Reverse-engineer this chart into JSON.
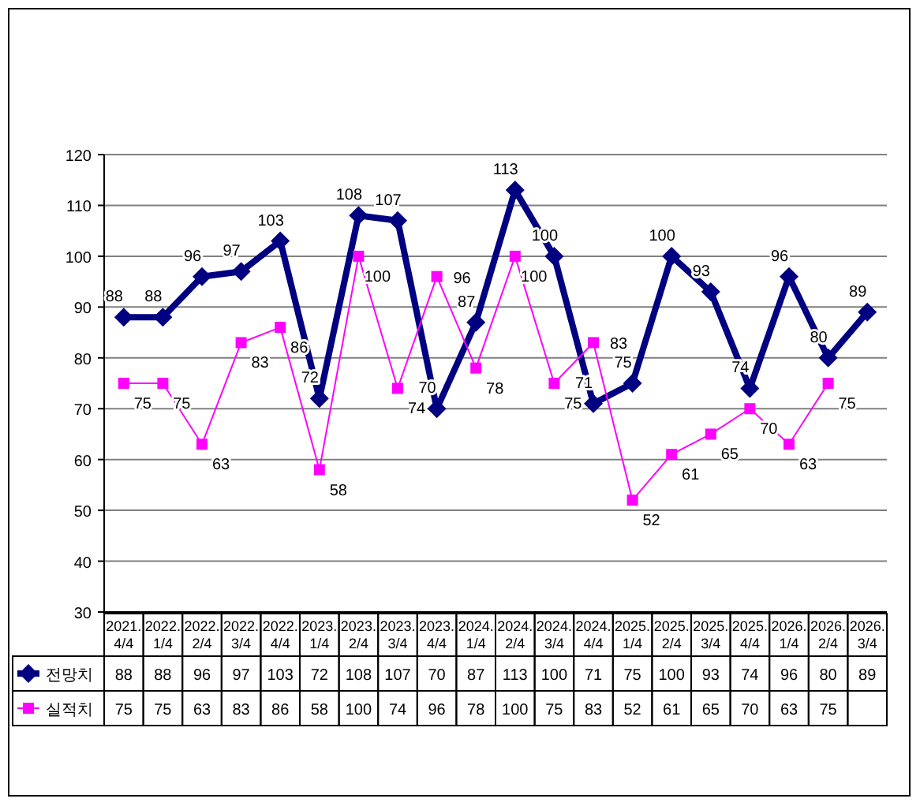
{
  "chart_data": {
    "type": "line",
    "categories": [
      "2021.4/4",
      "2022.1/4",
      "2022.2/4",
      "2022.3/4",
      "2022.4/4",
      "2023.1/4",
      "2023.2/4",
      "2023.3/4",
      "2023.4/4",
      "2024.1/4",
      "2024.2/4",
      "2024.3/4",
      "2024.4/4",
      "2025.1/4",
      "2025.2/4",
      "2025.3/4",
      "2025.4/4",
      "2026.1/4",
      "2026.2/4",
      "2026.3/4"
    ],
    "series": [
      {
        "name": "전망치",
        "color": "#000080",
        "marker": "diamond",
        "values": [
          88,
          88,
          96,
          97,
          103,
          72,
          108,
          107,
          70,
          87,
          113,
          100,
          71,
          75,
          100,
          93,
          74,
          96,
          80,
          89
        ]
      },
      {
        "name": "실적치",
        "color": "#ff00ff",
        "marker": "square",
        "values": [
          75,
          75,
          63,
          83,
          86,
          58,
          100,
          74,
          96,
          78,
          100,
          75,
          83,
          52,
          61,
          65,
          70,
          63,
          75,
          null
        ]
      }
    ],
    "annotations": [
      {
        "text": "88",
        "x": "2021.4/4",
        "y": 88
      },
      {
        "text": "88",
        "x": "2022.1/4",
        "y": 88
      },
      {
        "text": "96",
        "x": "2022.2/4",
        "y": 96
      },
      {
        "text": "97",
        "x": "2022.3/4",
        "y": 97
      },
      {
        "text": "103",
        "x": "2022.4/4",
        "y": 103
      },
      {
        "text": "72",
        "x": "2023.1/4",
        "y": 72
      },
      {
        "text": "108",
        "x": "2023.2/4",
        "y": 108
      },
      {
        "text": "107",
        "x": "2023.3/4",
        "y": 107
      },
      {
        "text": "70",
        "x": "2023.4/4",
        "y": 70
      },
      {
        "text": "87",
        "x": "2024.1/4",
        "y": 87
      },
      {
        "text": "113",
        "x": "2024.2/4",
        "y": 113
      },
      {
        "text": "100",
        "x": "2024.3/4",
        "y": 100
      },
      {
        "text": "71",
        "x": "2024.4/4",
        "y": 71
      },
      {
        "text": "75",
        "x": "2025.1/4",
        "y": 75
      },
      {
        "text": "100",
        "x": "2025.2/4",
        "y": 100
      },
      {
        "text": "93",
        "x": "2025.3/4",
        "y": 93
      },
      {
        "text": "74",
        "x": "2025.4/4",
        "y": 74
      },
      {
        "text": "96",
        "x": "2026.1/4",
        "y": 96
      },
      {
        "text": "80",
        "x": "2026.2/4",
        "y": 80
      },
      {
        "text": "89",
        "x": "2026.3/4",
        "y": 89
      },
      {
        "text": "75",
        "x": "2021.4/4",
        "y": 75
      },
      {
        "text": "75",
        "x": "2022.1/4",
        "y": 75
      },
      {
        "text": "63",
        "x": "2022.2/4",
        "y": 63
      },
      {
        "text": "83",
        "x": "2022.3/4",
        "y": 83
      },
      {
        "text": "86",
        "x": "2022.4/4",
        "y": 86
      },
      {
        "text": "58",
        "x": "2023.1/4",
        "y": 58
      },
      {
        "text": "100",
        "x": "2023.2/4",
        "y": 100
      },
      {
        "text": "74",
        "x": "2023.3/4",
        "y": 74
      },
      {
        "text": "96",
        "x": "2023.4/4",
        "y": 96
      },
      {
        "text": "78",
        "x": "2024.1/4",
        "y": 78
      },
      {
        "text": "100",
        "x": "2024.2/4",
        "y": 100
      },
      {
        "text": "75",
        "x": "2024.3/4",
        "y": 75
      },
      {
        "text": "83",
        "x": "2024.4/4",
        "y": 83
      },
      {
        "text": "52",
        "x": "2025.1/4",
        "y": 52
      },
      {
        "text": "61",
        "x": "2025.2/4",
        "y": 61
      },
      {
        "text": "65",
        "x": "2025.3/4",
        "y": 65
      },
      {
        "text": "70",
        "x": "2025.4/4",
        "y": 70
      },
      {
        "text": "63",
        "x": "2026.1/4",
        "y": 63
      },
      {
        "text": "75",
        "x": "2026.2/4",
        "y": 75
      }
    ],
    "ylim": [
      30,
      120
    ],
    "yticks": [
      30,
      40,
      50,
      60,
      70,
      80,
      90,
      100,
      110,
      120
    ],
    "grid": "y",
    "data_labels": true,
    "legend": "bottom left"
  }
}
